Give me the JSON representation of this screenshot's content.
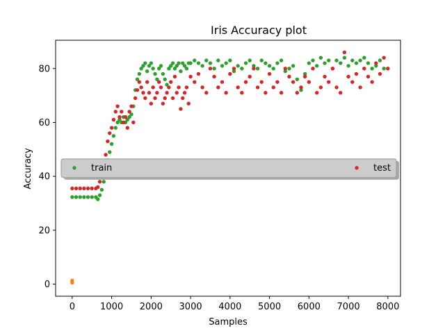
{
  "chart_data": {
    "type": "scatter",
    "title": "Iris Accuracy plot",
    "xlabel": "Samples",
    "ylabel": "Accuracy",
    "xlim": [
      -420,
      8320
    ],
    "ylim": [
      -4.5,
      90.5
    ],
    "x_ticks": [
      0,
      1000,
      2000,
      3000,
      4000,
      5000,
      6000,
      7000,
      8000
    ],
    "y_ticks": [
      0,
      20,
      40,
      60,
      80
    ],
    "grid": false,
    "legend": {
      "placement": "center (spanning full width)",
      "entries": [
        {
          "label": "train",
          "color": "#2ca02c"
        },
        {
          "label": "test",
          "color": "#d62728"
        }
      ]
    },
    "series": [
      {
        "name": "train",
        "color": "#2ca02c",
        "marker": "dot",
        "x": [
          0,
          100,
          200,
          300,
          400,
          500,
          600,
          650,
          700,
          750,
          800,
          850,
          900,
          950,
          1000,
          1050,
          1100,
          1150,
          1200,
          1250,
          1300,
          1350,
          1400,
          1450,
          1500,
          1550,
          1600,
          1650,
          1700,
          1750,
          1800,
          1850,
          1900,
          1950,
          2000,
          2050,
          2100,
          2150,
          2200,
          2250,
          2300,
          2350,
          2400,
          2450,
          2500,
          2550,
          2600,
          2650,
          2700,
          2750,
          2800,
          2850,
          2900,
          2950,
          3000,
          3100,
          3200,
          3300,
          3400,
          3500,
          3600,
          3700,
          3800,
          3900,
          4000,
          4100,
          4200,
          4300,
          4400,
          4500,
          4600,
          4700,
          4800,
          4900,
          5000,
          5100,
          5200,
          5300,
          5400,
          5500,
          5600,
          5700,
          5800,
          5900,
          6000,
          6100,
          6200,
          6300,
          6400,
          6500,
          6600,
          6700,
          6800,
          6900,
          7000,
          7100,
          7200,
          7300,
          7400,
          7500,
          7600,
          7700,
          7800,
          7900,
          8000
        ],
        "y": [
          32.3,
          32.3,
          32.3,
          32.3,
          32.3,
          32.3,
          32.3,
          31.5,
          33,
          35,
          38,
          42,
          46,
          49,
          52,
          55,
          58,
          60,
          61,
          60,
          62,
          60,
          61,
          62,
          63,
          66,
          72,
          76,
          78,
          80,
          81,
          82,
          79,
          81,
          82,
          80,
          78,
          76,
          80,
          81,
          78,
          76,
          74,
          80,
          81,
          82,
          80,
          81,
          82,
          79,
          82,
          81,
          80,
          82,
          82,
          83,
          82,
          81,
          83,
          82,
          80,
          83,
          81,
          82,
          83,
          79,
          81,
          80,
          82,
          83,
          81,
          80,
          83,
          82,
          81,
          80,
          82,
          83,
          79,
          80,
          81,
          76,
          72,
          78,
          82,
          83,
          81,
          84,
          82,
          83,
          80,
          83,
          82,
          84,
          81,
          83,
          82,
          83,
          84,
          82,
          80,
          81,
          83,
          80,
          80
        ]
      },
      {
        "name": "test",
        "color": "#d62728",
        "marker": "dot",
        "x": [
          0,
          100,
          200,
          300,
          400,
          500,
          600,
          650,
          700,
          750,
          800,
          850,
          900,
          950,
          1000,
          1050,
          1100,
          1150,
          1200,
          1250,
          1300,
          1350,
          1400,
          1450,
          1500,
          1550,
          1600,
          1650,
          1700,
          1750,
          1800,
          1850,
          1900,
          1950,
          2000,
          2050,
          2100,
          2150,
          2200,
          2250,
          2300,
          2350,
          2400,
          2450,
          2500,
          2550,
          2600,
          2650,
          2700,
          2750,
          2800,
          2850,
          2900,
          2950,
          3000,
          3100,
          3200,
          3300,
          3400,
          3500,
          3600,
          3700,
          3800,
          3900,
          4000,
          4100,
          4200,
          4300,
          4400,
          4500,
          4600,
          4700,
          4800,
          4900,
          5000,
          5100,
          5200,
          5300,
          5400,
          5500,
          5600,
          5700,
          5800,
          5900,
          6000,
          6100,
          6200,
          6300,
          6400,
          6500,
          6600,
          6700,
          6800,
          6900,
          7000,
          7100,
          7200,
          7300,
          7400,
          7500,
          7600,
          7700,
          7800,
          7900,
          8000
        ],
        "y": [
          35.5,
          35.5,
          35.5,
          35.5,
          35.5,
          35.5,
          35.5,
          36,
          38,
          40,
          44,
          48,
          53,
          56,
          58,
          61,
          64,
          66,
          62,
          64,
          60,
          62,
          58,
          64,
          66,
          60,
          69,
          72,
          75,
          73,
          71,
          69,
          75,
          71,
          67,
          73,
          69,
          71,
          75,
          73,
          67,
          69,
          71,
          73,
          75,
          69,
          77,
          71,
          73,
          65,
          69,
          71,
          73,
          67,
          77,
          75,
          78,
          73,
          71,
          80,
          77,
          73,
          75,
          71,
          78,
          80,
          73,
          71,
          75,
          77,
          80,
          73,
          75,
          71,
          78,
          73,
          75,
          71,
          80,
          77,
          75,
          71,
          73,
          77,
          75,
          80,
          71,
          73,
          77,
          75,
          80,
          73,
          71,
          86,
          77,
          75,
          78,
          73,
          80,
          77,
          75,
          82,
          78,
          84,
          80
        ]
      },
      {
        "name": "",
        "color": "#ff7f0e",
        "marker": "dot",
        "x": [
          0,
          0
        ],
        "y": [
          0.5,
          1.3
        ]
      }
    ]
  }
}
